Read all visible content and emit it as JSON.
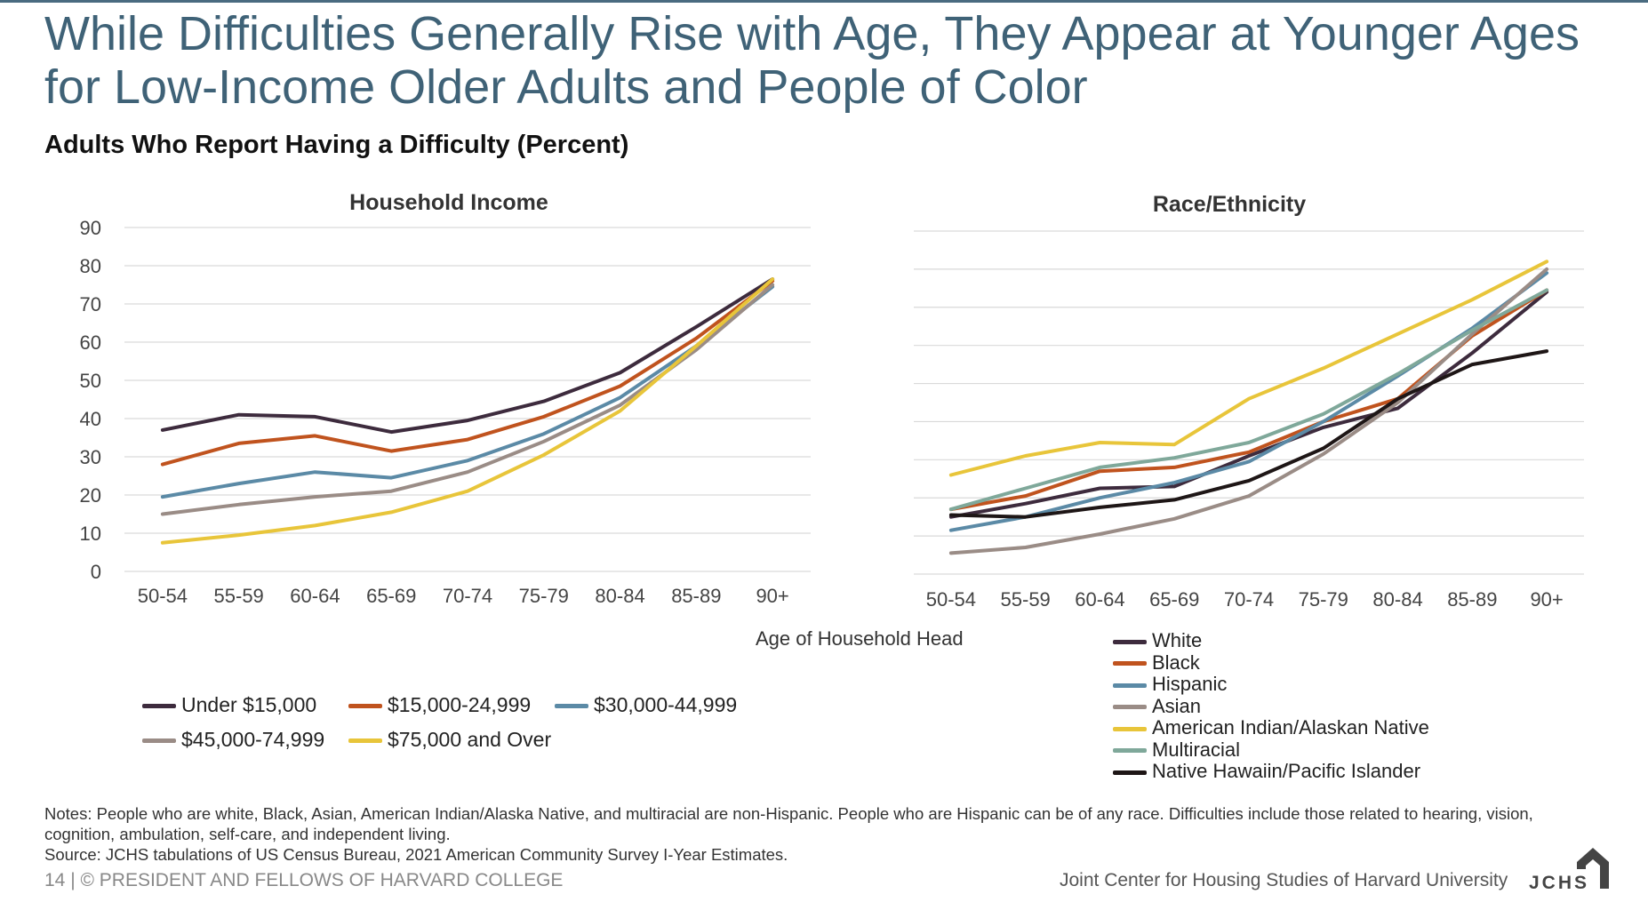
{
  "slide": {
    "title": "While Difficulties Generally Rise with Age, They Appear at Younger Ages for Low-Income Older Adults and People of Color",
    "subtitle": "Adults Who Report Having a Difficulty (Percent)",
    "xaxis_title": "Age of Household Head",
    "notes": [
      "Notes: People who are white, Black, Asian, American Indian/Alaska Native, and multiracial are non-Hispanic. People who are Hispanic can be of any race. Difficulties include those related to hearing, vision, cognition, ambulation, self-care, and independent living.",
      "Source: JCHS tabulations of US Census Bureau, 2021 American Community Survey I-Year Estimates."
    ],
    "footer_left": "14 | © PRESIDENT AND FELLOWS OF HARVARD COLLEGE",
    "footer_right": "Joint Center for Housing Studies of Harvard University",
    "logo_text": "JCHS"
  },
  "chart_data": [
    {
      "type": "line",
      "title": "Household Income",
      "xlabel": "Age of Household Head",
      "ylabel": "",
      "ylim": [
        0,
        90
      ],
      "yticks": [
        "0",
        "10",
        "20",
        "30",
        "40",
        "50",
        "60",
        "70",
        "80",
        "90"
      ],
      "grid": true,
      "legend": "bottom",
      "categories": [
        "50-54",
        "55-59",
        "60-64",
        "65-69",
        "70-74",
        "75-79",
        "80-84",
        "85-89",
        "90+"
      ],
      "series": [
        {
          "name": "Under $15,000",
          "color": "#3d2b3d",
          "values": [
            37,
            41,
            40.5,
            36.5,
            39.5,
            44.5,
            52,
            64,
            76.5
          ]
        },
        {
          "name": "$15,000-24,999",
          "color": "#c0531e",
          "values": [
            28,
            33.5,
            35.5,
            31.5,
            34.5,
            40.5,
            48.5,
            61,
            76
          ]
        },
        {
          "name": "$30,000-44,999",
          "color": "#5b8aa6",
          "values": [
            19.5,
            23,
            26,
            24.5,
            29,
            36,
            45.5,
            59,
            74.5
          ]
        },
        {
          "name": "$45,000-74,999",
          "color": "#9a8c86",
          "values": [
            15,
            17.5,
            19.5,
            21,
            26,
            34,
            43.5,
            58,
            75
          ]
        },
        {
          "name": "$75,000 and Over",
          "color": "#e8c53a",
          "values": [
            7.5,
            9.5,
            12,
            15.5,
            21,
            30.5,
            42,
            59,
            76.5
          ]
        }
      ]
    },
    {
      "type": "line",
      "title": "Race/Ethnicity",
      "xlabel": "Age of Household Head",
      "ylabel": "",
      "ylim": [
        0,
        90
      ],
      "grid": true,
      "legend": "bottom-right",
      "categories": [
        "50-54",
        "55-59",
        "60-64",
        "65-69",
        "70-74",
        "75-79",
        "80-84",
        "85-89",
        "90+"
      ],
      "series": [
        {
          "name": "White",
          "color": "#3d2b3d",
          "values": [
            15,
            18.5,
            22.5,
            23,
            31,
            38.5,
            43.5,
            58,
            74
          ]
        },
        {
          "name": "Black",
          "color": "#c0531e",
          "values": [
            17,
            20.5,
            27,
            28,
            32,
            40,
            46,
            62.5,
            74.5
          ]
        },
        {
          "name": "Hispanic",
          "color": "#5b8aa6",
          "values": [
            11.5,
            15,
            20,
            24,
            29.5,
            40,
            52,
            64.5,
            79
          ]
        },
        {
          "name": "Asian",
          "color": "#9a8c86",
          "values": [
            5.5,
            7,
            10.5,
            14.5,
            20.5,
            31.5,
            45,
            63,
            80
          ]
        },
        {
          "name": "American Indian/Alaskan Native",
          "color": "#e8c53a",
          "values": [
            26,
            31,
            34.5,
            34,
            46,
            54,
            63,
            72,
            82
          ]
        },
        {
          "name": "Multiracial",
          "color": "#7fa89a",
          "values": [
            17,
            22.5,
            28,
            30.5,
            34.5,
            42,
            52.5,
            64,
            74.5
          ]
        },
        {
          "name": "Native Hawaiin/Pacific Islander",
          "color": "#1e1616",
          "values": [
            15.5,
            15,
            17.5,
            19.5,
            24.5,
            33,
            46,
            55,
            58.5
          ]
        }
      ]
    }
  ]
}
